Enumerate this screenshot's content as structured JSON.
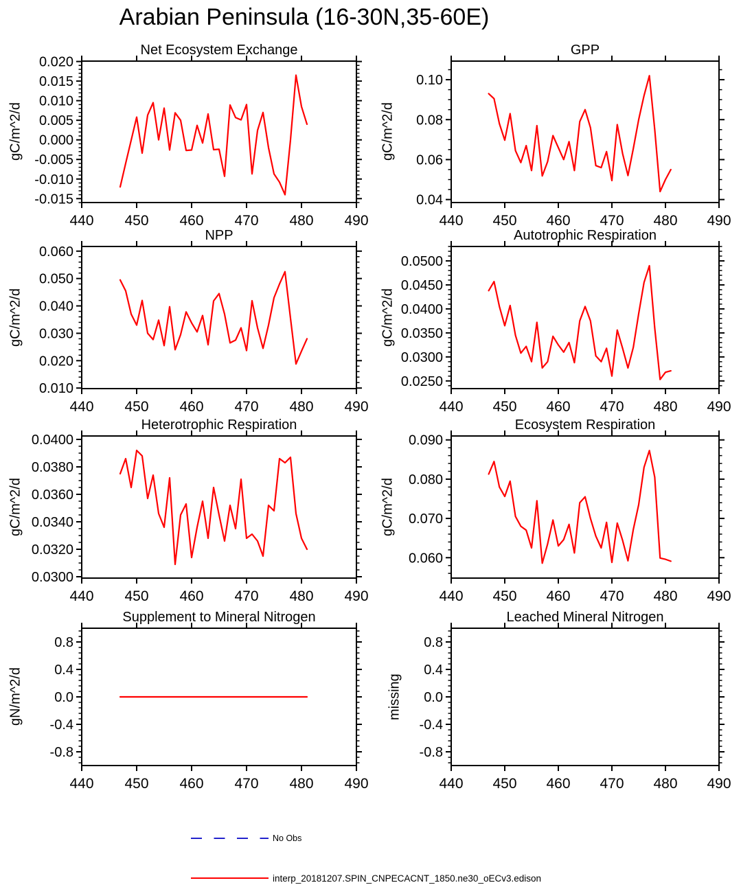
{
  "page": {
    "title": "Arabian Peninsula (16-30N,35-60E)"
  },
  "legend": {
    "no_obs": {
      "label": "No Obs",
      "color": "#2222cc",
      "style": "dashed"
    },
    "series": {
      "label": "interp_20181207.SPIN_CNPECACNT_1850.ne30_oECv3.edison",
      "color": "#ff0000",
      "style": "solid"
    }
  },
  "chart_data": [
    {
      "type": "line",
      "title": "Net Ecosystem Exchange",
      "ylabel": "gC/m^2/d",
      "xlabel": "",
      "xlim": [
        440,
        490
      ],
      "xticks": [
        440,
        450,
        460,
        470,
        480,
        490
      ],
      "xtick_labels": [
        "440",
        "450",
        "460",
        "470",
        "480",
        "490"
      ],
      "ylim": [
        -0.016,
        0.0201
      ],
      "yticks": [
        0.02,
        0.015,
        0.01,
        0.005,
        0.0,
        -0.005,
        -0.01,
        -0.015
      ],
      "ytick_labels": [
        "0.020",
        "0.015",
        "0.010",
        "0.005",
        "0.000",
        "-0.005",
        "-0.010",
        "-0.015"
      ],
      "yminor_step": 0.001,
      "grid": false,
      "series": [
        {
          "name": "interp_20181207.SPIN_CNPECACNT_1850.ne30_oECv3.edison",
          "color": "#ff0000",
          "x_start": 447,
          "x_step": 1,
          "values": [
            -0.012,
            -0.006,
            -0.0001,
            0.0058,
            -0.0034,
            0.0063,
            0.0095,
            0.0,
            0.0081,
            -0.0026,
            0.0069,
            0.005,
            -0.0027,
            -0.0026,
            0.0037,
            -0.0008,
            0.0066,
            -0.0025,
            -0.0024,
            -0.0093,
            0.0089,
            0.0057,
            0.0051,
            0.009,
            -0.0087,
            0.0024,
            0.007,
            -0.002,
            -0.0087,
            -0.0108,
            -0.014,
            0.0,
            0.0165,
            0.0085,
            0.004
          ]
        }
      ]
    },
    {
      "type": "line",
      "title": "GPP",
      "ylabel": "gC/m^2/d",
      "xlabel": "",
      "xlim": [
        440,
        490
      ],
      "xticks": [
        440,
        450,
        460,
        470,
        480,
        490
      ],
      "xtick_labels": [
        "440",
        "450",
        "460",
        "470",
        "480",
        "490"
      ],
      "ylim": [
        0.0385,
        0.1093
      ],
      "yticks": [
        0.1,
        0.08,
        0.06,
        0.04
      ],
      "ytick_labels": [
        "0.10",
        "0.08",
        "0.06",
        "0.04"
      ],
      "yminor_step": 0.005,
      "grid": false,
      "series": [
        {
          "name": "interp_20181207.SPIN_CNPECACNT_1850.ne30_oECv3.edison",
          "color": "#ff0000",
          "x_start": 447,
          "x_step": 1,
          "values": [
            0.093,
            0.0905,
            0.078,
            0.0697,
            0.083,
            0.0645,
            0.0585,
            0.067,
            0.0545,
            0.077,
            0.0518,
            0.059,
            0.072,
            0.066,
            0.06,
            0.069,
            0.0545,
            0.079,
            0.085,
            0.076,
            0.057,
            0.056,
            0.064,
            0.0495,
            0.0775,
            0.063,
            0.052,
            0.0655,
            0.08,
            0.092,
            0.102,
            0.075,
            0.044,
            0.05,
            0.055
          ]
        }
      ]
    },
    {
      "type": "line",
      "title": "NPP",
      "ylabel": "gC/m^2/d",
      "xlabel": "",
      "xlim": [
        440,
        490
      ],
      "xticks": [
        440,
        450,
        460,
        470,
        480,
        490
      ],
      "xtick_labels": [
        "440",
        "450",
        "460",
        "470",
        "480",
        "490"
      ],
      "ylim": [
        0.0098,
        0.0617
      ],
      "yticks": [
        0.06,
        0.05,
        0.04,
        0.03,
        0.02,
        0.01
      ],
      "ytick_labels": [
        "0.060",
        "0.050",
        "0.040",
        "0.030",
        "0.020",
        "0.010"
      ],
      "yminor_step": 0.002,
      "grid": false,
      "series": [
        {
          "name": "interp_20181207.SPIN_CNPECACNT_1850.ne30_oECv3.edison",
          "color": "#ff0000",
          "x_start": 447,
          "x_step": 1,
          "values": [
            0.0495,
            0.0455,
            0.037,
            0.033,
            0.042,
            0.03,
            0.0277,
            0.0348,
            0.0255,
            0.0397,
            0.024,
            0.0295,
            0.0378,
            0.0338,
            0.0305,
            0.0365,
            0.0258,
            0.0418,
            0.0445,
            0.037,
            0.0265,
            0.0275,
            0.032,
            0.0237,
            0.0419,
            0.032,
            0.0245,
            0.033,
            0.043,
            0.048,
            0.0525,
            0.0355,
            0.0188,
            0.0235,
            0.028
          ]
        }
      ]
    },
    {
      "type": "line",
      "title": "Autotrophic Respiration",
      "ylabel": "gC/m^2/d",
      "xlabel": "",
      "xlim": [
        440,
        490
      ],
      "xticks": [
        440,
        450,
        460,
        470,
        480,
        490
      ],
      "xtick_labels": [
        "440",
        "450",
        "460",
        "470",
        "480",
        "490"
      ],
      "ylim": [
        0.0234,
        0.053
      ],
      "yticks": [
        0.05,
        0.045,
        0.04,
        0.035,
        0.03,
        0.025
      ],
      "ytick_labels": [
        "0.0500",
        "0.0450",
        "0.0400",
        "0.0350",
        "0.0300",
        "0.0250"
      ],
      "yminor_step": 0.001,
      "grid": false,
      "series": [
        {
          "name": "interp_20181207.SPIN_CNPECACNT_1850.ne30_oECv3.edison",
          "color": "#ff0000",
          "x_start": 447,
          "x_step": 1,
          "values": [
            0.0438,
            0.0457,
            0.0405,
            0.0365,
            0.0407,
            0.0345,
            0.0308,
            0.0322,
            0.029,
            0.0372,
            0.0277,
            0.029,
            0.0343,
            0.0325,
            0.031,
            0.033,
            0.0288,
            0.0375,
            0.0405,
            0.0375,
            0.0302,
            0.029,
            0.0318,
            0.026,
            0.0356,
            0.0318,
            0.0277,
            0.032,
            0.039,
            0.0455,
            0.049,
            0.036,
            0.0253,
            0.0268,
            0.0271
          ]
        }
      ]
    },
    {
      "type": "line",
      "title": "Heterotrophic Respiration",
      "ylabel": "gC/m^2/d",
      "xlabel": "",
      "xlim": [
        440,
        490
      ],
      "xticks": [
        440,
        450,
        460,
        470,
        480,
        490
      ],
      "xtick_labels": [
        "440",
        "450",
        "460",
        "470",
        "480",
        "490"
      ],
      "ylim": [
        0.0299,
        0.04025
      ],
      "yticks": [
        0.04,
        0.038,
        0.036,
        0.034,
        0.032,
        0.03
      ],
      "ytick_labels": [
        "0.0400",
        "0.0380",
        "0.0360",
        "0.0340",
        "0.0320",
        "0.0300"
      ],
      "yminor_step": 0.0005,
      "grid": false,
      "series": [
        {
          "name": "interp_20181207.SPIN_CNPECACNT_1850.ne30_oECv3.edison",
          "color": "#ff0000",
          "x_start": 447,
          "x_step": 1,
          "values": [
            0.0375,
            0.0386,
            0.0365,
            0.0392,
            0.0388,
            0.0357,
            0.0374,
            0.0346,
            0.0336,
            0.0372,
            0.0309,
            0.0345,
            0.0353,
            0.0314,
            0.0336,
            0.0355,
            0.0328,
            0.0365,
            0.0345,
            0.0326,
            0.0352,
            0.0335,
            0.0371,
            0.0328,
            0.0331,
            0.0326,
            0.0315,
            0.0352,
            0.0348,
            0.0386,
            0.0383,
            0.0387,
            0.0346,
            0.0328,
            0.032
          ]
        }
      ]
    },
    {
      "type": "line",
      "title": "Ecosystem Respiration",
      "ylabel": "gC/m^2/d",
      "xlabel": "",
      "xlim": [
        440,
        490
      ],
      "xticks": [
        440,
        450,
        460,
        470,
        480,
        490
      ],
      "xtick_labels": [
        "440",
        "450",
        "460",
        "470",
        "480",
        "490"
      ],
      "ylim": [
        0.0548,
        0.091
      ],
      "yticks": [
        0.09,
        0.08,
        0.07,
        0.06
      ],
      "ytick_labels": [
        "0.090",
        "0.080",
        "0.070",
        "0.060"
      ],
      "yminor_step": 0.002,
      "grid": false,
      "series": [
        {
          "name": "interp_20181207.SPIN_CNPECACNT_1850.ne30_oECv3.edison",
          "color": "#ff0000",
          "x_start": 447,
          "x_step": 1,
          "values": [
            0.0813,
            0.0845,
            0.078,
            0.0756,
            0.0795,
            0.0705,
            0.068,
            0.067,
            0.0625,
            0.0745,
            0.0586,
            0.0635,
            0.0696,
            0.063,
            0.0646,
            0.0685,
            0.0612,
            0.074,
            0.0755,
            0.07,
            0.0655,
            0.0625,
            0.069,
            0.0588,
            0.0688,
            0.0644,
            0.0592,
            0.0672,
            0.0735,
            0.083,
            0.0873,
            0.0805,
            0.0599,
            0.0596,
            0.0591
          ]
        }
      ]
    },
    {
      "type": "line",
      "title": "Supplement to Mineral Nitrogen",
      "ylabel": "gN/m^2/d",
      "xlabel": "",
      "xlim": [
        440,
        490
      ],
      "xticks": [
        440,
        450,
        460,
        470,
        480,
        490
      ],
      "xtick_labels": [
        "440",
        "450",
        "460",
        "470",
        "480",
        "490"
      ],
      "ylim": [
        -1.0,
        1.0
      ],
      "yticks": [
        0.8,
        0.4,
        0.0,
        -0.4,
        -0.8
      ],
      "ytick_labels": [
        "0.8",
        "0.4",
        "0.0",
        "-0.4",
        "-0.8"
      ],
      "yminor_step": 0.08,
      "grid": false,
      "series": [
        {
          "name": "interp_20181207.SPIN_CNPECACNT_1850.ne30_oECv3.edison",
          "color": "#ff0000",
          "x_start": 447,
          "x_step": 1,
          "values": [
            0.0,
            0.0,
            0.0,
            0.0,
            0.0,
            0.0,
            0.0,
            0.0,
            0.0,
            0.0,
            0.0,
            0.0,
            0.0,
            0.0,
            0.0,
            0.0,
            0.0,
            0.0,
            0.0,
            0.0,
            0.0,
            0.0,
            0.0,
            0.0,
            0.0,
            0.0,
            0.0,
            0.0,
            0.0,
            0.0,
            0.0,
            0.0,
            0.0,
            0.0,
            0.0
          ]
        }
      ]
    },
    {
      "type": "line",
      "title": "Leached Mineral Nitrogen",
      "ylabel": "missing",
      "xlabel": "",
      "xlim": [
        440,
        490
      ],
      "xticks": [
        440,
        450,
        460,
        470,
        480,
        490
      ],
      "xtick_labels": [
        "440",
        "450",
        "460",
        "470",
        "480",
        "490"
      ],
      "ylim": [
        -1.0,
        1.0
      ],
      "yticks": [
        0.8,
        0.4,
        0.0,
        -0.4,
        -0.8
      ],
      "ytick_labels": [
        "0.8",
        "0.4",
        "0.0",
        "-0.4",
        "-0.8"
      ],
      "yminor_step": 0.08,
      "grid": false,
      "series": []
    }
  ]
}
